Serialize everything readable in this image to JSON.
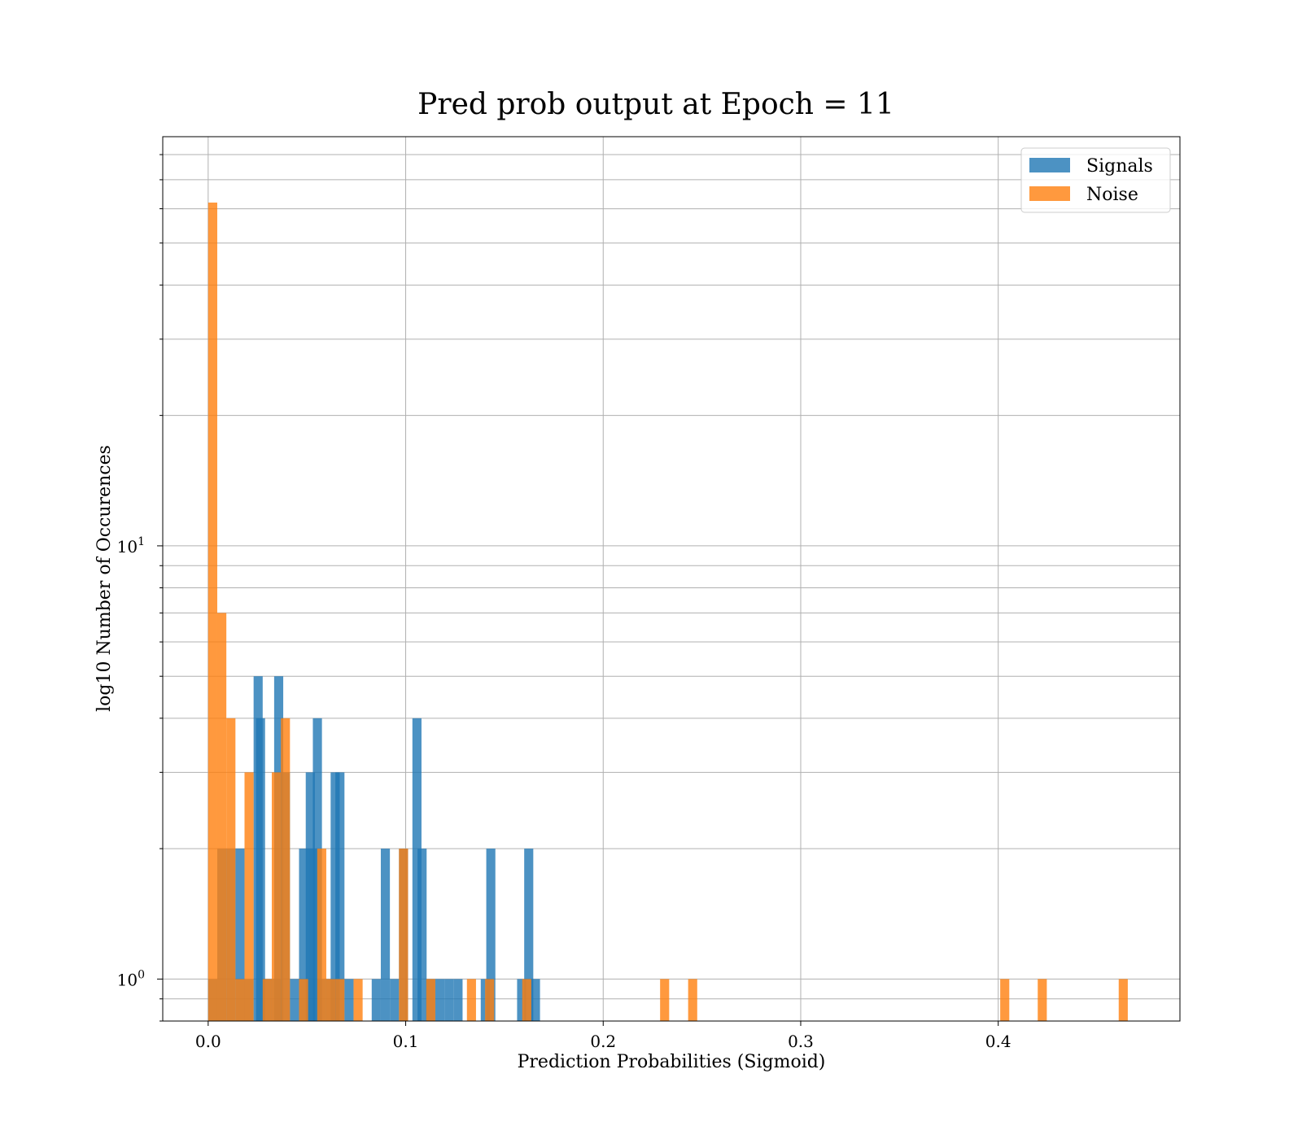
{
  "chart_data": {
    "type": "bar",
    "title": "Pred prob output at Epoch = 11",
    "xlabel": "Prediction Probabilities (Sigmoid)",
    "ylabel": "log10 Number of Occurences",
    "x_ticks": [
      "0.0",
      "0.1",
      "0.2",
      "0.3",
      "0.4"
    ],
    "x_tick_values": [
      0.0,
      0.1,
      0.2,
      0.3,
      0.4
    ],
    "y_ticks": [
      {
        "base": "10",
        "exp": "0",
        "value": 1
      },
      {
        "base": "10",
        "exp": "1",
        "value": 10
      }
    ],
    "xlim": [
      -0.023,
      0.492
    ],
    "ylim": [
      0.8,
      88
    ],
    "y_scale": "log",
    "grid": true,
    "legend_position": "upper right",
    "bin_width": 0.0046,
    "series": [
      {
        "name": "Signals",
        "color": "#1f77b4",
        "opacity": 0.8,
        "bins": [
          [
            0.0,
            1
          ],
          [
            0.0046,
            2
          ],
          [
            0.0092,
            2
          ],
          [
            0.0138,
            2
          ],
          [
            0.0184,
            1
          ],
          [
            0.023,
            5
          ],
          [
            0.0242,
            4
          ],
          [
            0.0276,
            1
          ],
          [
            0.0322,
            1
          ],
          [
            0.0334,
            5
          ],
          [
            0.0368,
            3
          ],
          [
            0.0414,
            1
          ],
          [
            0.046,
            2
          ],
          [
            0.0494,
            3
          ],
          [
            0.0506,
            2
          ],
          [
            0.053,
            4
          ],
          [
            0.0552,
            1
          ],
          [
            0.0598,
            1
          ],
          [
            0.062,
            3
          ],
          [
            0.0644,
            3
          ],
          [
            0.069,
            1
          ],
          [
            0.0828,
            1
          ],
          [
            0.0874,
            2
          ],
          [
            0.092,
            1
          ],
          [
            0.0966,
            2
          ],
          [
            0.1034,
            4
          ],
          [
            0.106,
            2
          ],
          [
            0.1104,
            1
          ],
          [
            0.115,
            1
          ],
          [
            0.1196,
            1
          ],
          [
            0.1242,
            1
          ],
          [
            0.138,
            1
          ],
          [
            0.1408,
            2
          ],
          [
            0.1564,
            1
          ],
          [
            0.16,
            2
          ],
          [
            0.1634,
            1
          ]
        ]
      },
      {
        "name": "Noise",
        "color": "#ff7f0e",
        "opacity": 0.8,
        "bins": [
          [
            0.0,
            62
          ],
          [
            0.0046,
            7
          ],
          [
            0.0092,
            4
          ],
          [
            0.0138,
            1
          ],
          [
            0.0184,
            3
          ],
          [
            0.0276,
            1
          ],
          [
            0.0322,
            3
          ],
          [
            0.0368,
            4
          ],
          [
            0.046,
            1
          ],
          [
            0.0552,
            2
          ],
          [
            0.0598,
            1
          ],
          [
            0.0644,
            1
          ],
          [
            0.0736,
            1
          ],
          [
            0.0966,
            2
          ],
          [
            0.1104,
            1
          ],
          [
            0.131,
            1
          ],
          [
            0.1402,
            1
          ],
          [
            0.159,
            1
          ],
          [
            0.2288,
            1
          ],
          [
            0.243,
            1
          ],
          [
            0.401,
            1
          ],
          [
            0.42,
            1
          ],
          [
            0.461,
            1
          ]
        ]
      }
    ]
  }
}
